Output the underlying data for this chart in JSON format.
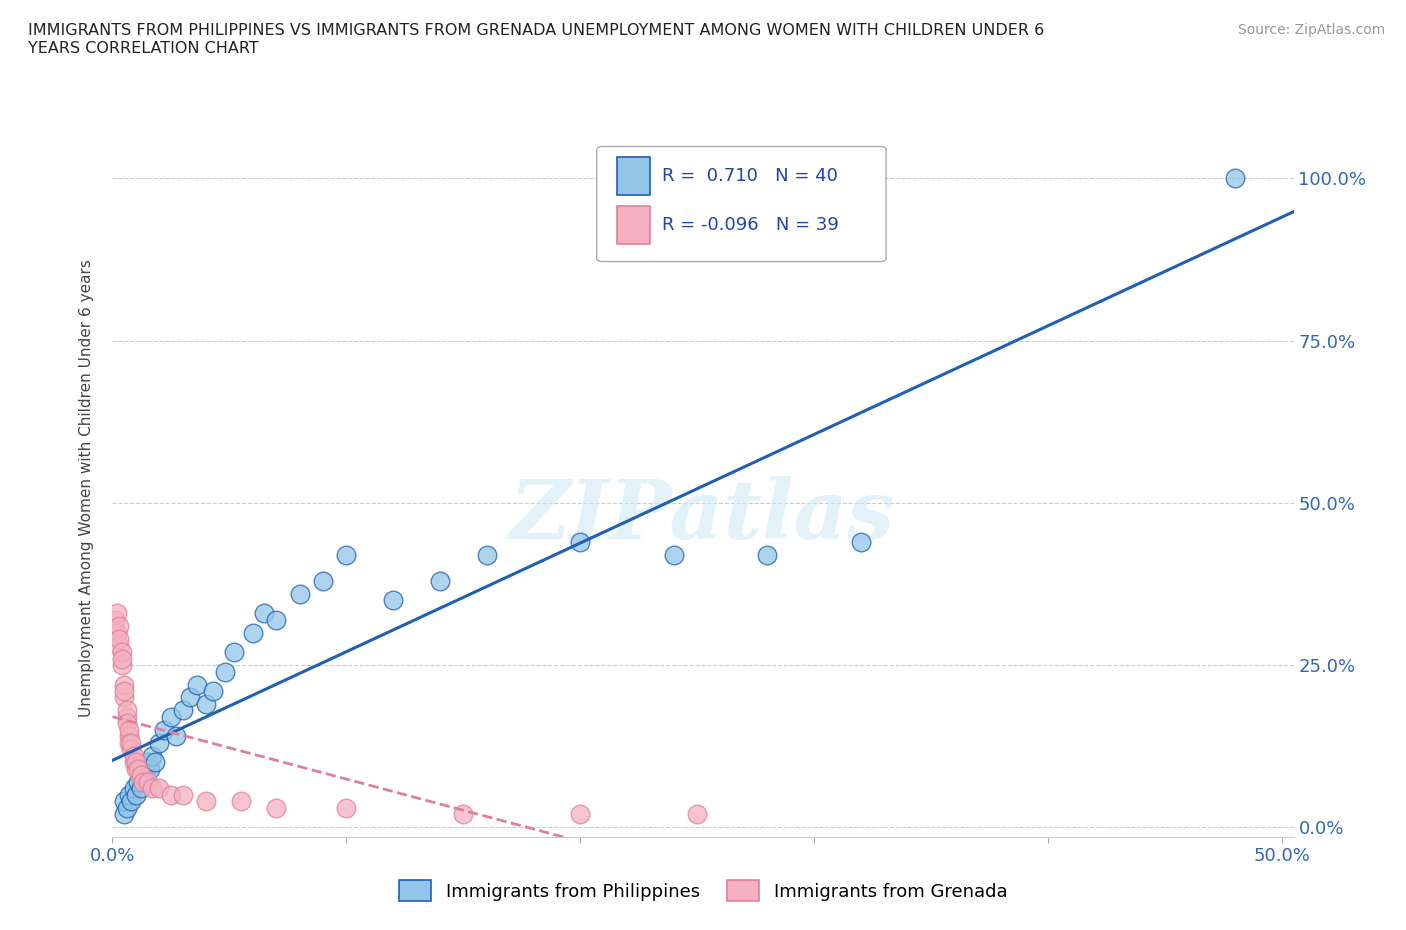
{
  "title": "IMMIGRANTS FROM PHILIPPINES VS IMMIGRANTS FROM GRENADA UNEMPLOYMENT AMONG WOMEN WITH CHILDREN UNDER 6\nYEARS CORRELATION CHART",
  "source": "Source: ZipAtlas.com",
  "ylabel_label": "Unemployment Among Women with Children Under 6 years",
  "legend_bottom": [
    "Immigrants from Philippines",
    "Immigrants from Grenada"
  ],
  "R_philippines": 0.71,
  "N_philippines": 40,
  "R_grenada": -0.096,
  "N_grenada": 39,
  "color_philippines": "#92c5e8",
  "color_grenada": "#f4afc0",
  "color_philippines_line": "#2060b0",
  "color_grenada_line": "#e08098",
  "philippines_x": [
    0.005,
    0.005,
    0.006,
    0.007,
    0.008,
    0.009,
    0.01,
    0.011,
    0.012,
    0.013,
    0.014,
    0.015,
    0.016,
    0.017,
    0.018,
    0.02,
    0.022,
    0.025,
    0.027,
    0.03,
    0.033,
    0.036,
    0.04,
    0.043,
    0.048,
    0.052,
    0.06,
    0.065,
    0.07,
    0.08,
    0.09,
    0.1,
    0.12,
    0.14,
    0.16,
    0.2,
    0.24,
    0.28,
    0.32,
    0.48
  ],
  "philippines_y": [
    0.02,
    0.04,
    0.03,
    0.05,
    0.04,
    0.06,
    0.05,
    0.07,
    0.06,
    0.08,
    0.08,
    0.1,
    0.09,
    0.11,
    0.1,
    0.13,
    0.15,
    0.17,
    0.14,
    0.18,
    0.2,
    0.22,
    0.19,
    0.21,
    0.24,
    0.27,
    0.3,
    0.33,
    0.32,
    0.36,
    0.38,
    0.42,
    0.35,
    0.38,
    0.42,
    0.44,
    0.42,
    0.42,
    0.44,
    1.0
  ],
  "grenada_x": [
    0.001,
    0.002,
    0.002,
    0.003,
    0.003,
    0.003,
    0.004,
    0.004,
    0.004,
    0.005,
    0.005,
    0.005,
    0.006,
    0.006,
    0.006,
    0.007,
    0.007,
    0.007,
    0.008,
    0.008,
    0.009,
    0.009,
    0.01,
    0.01,
    0.011,
    0.012,
    0.013,
    0.015,
    0.017,
    0.02,
    0.025,
    0.03,
    0.04,
    0.055,
    0.07,
    0.1,
    0.15,
    0.2,
    0.25
  ],
  "grenada_y": [
    0.32,
    0.3,
    0.33,
    0.28,
    0.31,
    0.29,
    0.25,
    0.27,
    0.26,
    0.2,
    0.22,
    0.21,
    0.17,
    0.18,
    0.16,
    0.14,
    0.15,
    0.13,
    0.12,
    0.13,
    0.1,
    0.11,
    0.09,
    0.1,
    0.09,
    0.08,
    0.07,
    0.07,
    0.06,
    0.06,
    0.05,
    0.05,
    0.04,
    0.04,
    0.03,
    0.03,
    0.02,
    0.02,
    0.02
  ],
  "watermark": "ZIPatlas",
  "xmin": 0.0,
  "xmax": 0.505,
  "ymin": -0.015,
  "ymax": 1.06
}
